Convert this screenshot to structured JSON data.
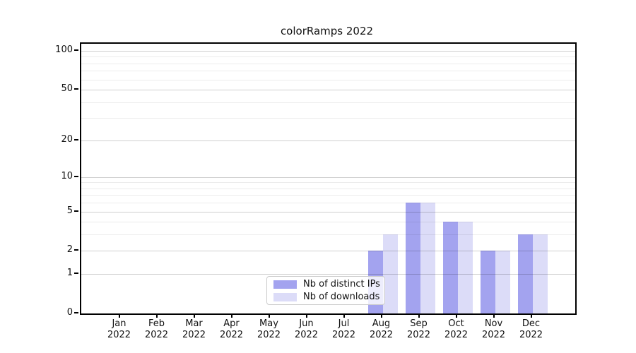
{
  "chart_data": {
    "type": "bar",
    "title": "colorRamps 2022",
    "categories": [
      "Jan",
      "Feb",
      "Mar",
      "Apr",
      "May",
      "Jun",
      "Jul",
      "Aug",
      "Sep",
      "Oct",
      "Nov",
      "Dec"
    ],
    "x_tick_second_line": "2022",
    "series": [
      {
        "name": "Nb of distinct IPs",
        "color": "#a3a3ef",
        "values": [
          0,
          0,
          0,
          0,
          0,
          0,
          0,
          2,
          6,
          4,
          2,
          3
        ]
      },
      {
        "name": "Nb of downloads",
        "color": "#dcdcf8",
        "values": [
          0,
          0,
          0,
          0,
          0,
          0,
          0,
          3,
          6,
          4,
          2,
          3
        ]
      }
    ],
    "xlabel": "",
    "ylabel": "",
    "yscale": "log1p",
    "ylim": [
      0,
      100
    ],
    "major_yticks": [
      0,
      1,
      2,
      5,
      10,
      20,
      50,
      100
    ],
    "minor_yticks": [
      3,
      4,
      6,
      7,
      8,
      9,
      30,
      40,
      60,
      70,
      80,
      90
    ],
    "grid": "horizontal",
    "legend_position": "bottom-center"
  },
  "style": {
    "spine_color": "#000000",
    "text_color": "#111111",
    "major_grid": "rgba(0,0,0,0.19)",
    "minor_grid": "rgba(0,0,0,0.075)"
  }
}
